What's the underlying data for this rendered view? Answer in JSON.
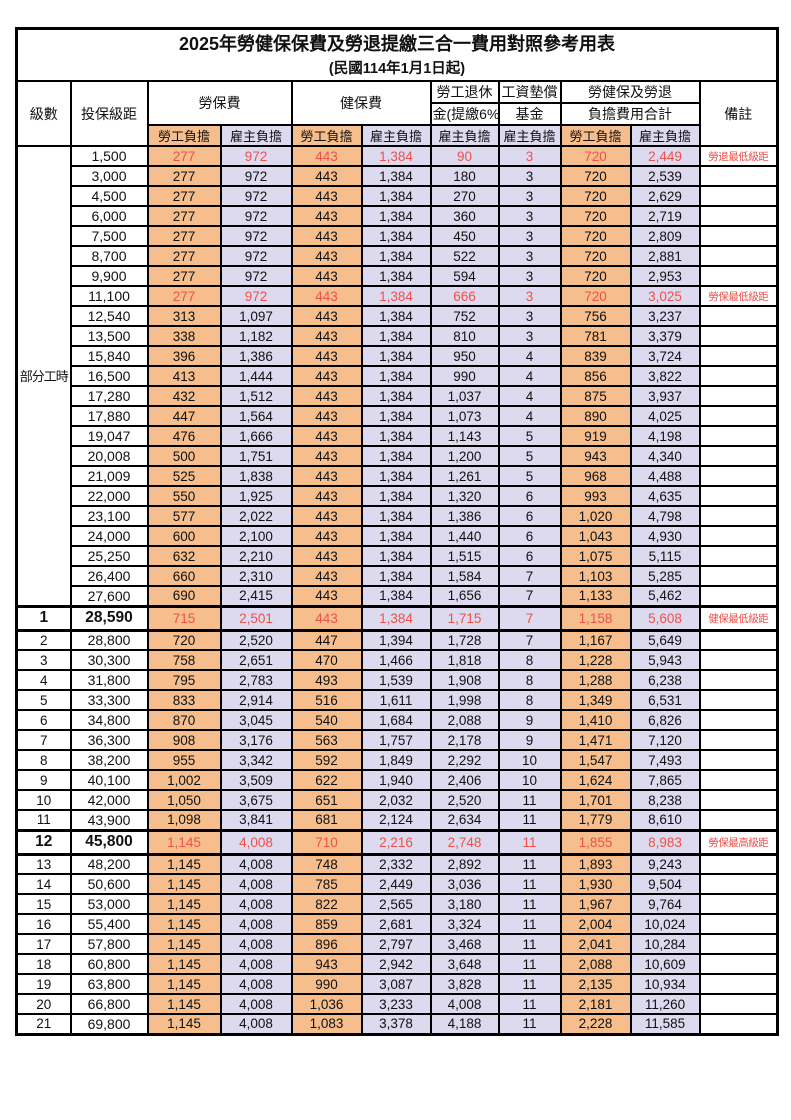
{
  "title": "2025年勞健保保費及勞退提繳三合一費用對照參考用表",
  "subtitle": "(民國114年1月1日起)",
  "header": {
    "level": "級數",
    "bracket": "投保級距",
    "labor_fee": "勞保費",
    "health_fee": "健保費",
    "pension_line1": "勞工退休",
    "pension_line2": "金(提繳6%)",
    "wage_fund_line1": "工資墊償",
    "wage_fund_line2": "基金",
    "total_line1": "勞健保及勞退",
    "total_line2": "負擔費用合計",
    "remark": "備註",
    "employee": "勞工負擔",
    "employer": "雇主負擔"
  },
  "part_time": {
    "label": "部分工時",
    "row_span": 23
  },
  "colors": {
    "employee_bg": "#F6BE8C",
    "employer_bg": "#DDD9EF",
    "red_text": "#EE5149",
    "border": "#000000"
  },
  "rows": [
    {
      "lv": "",
      "br": "1,500",
      "c": [
        "277",
        "972",
        "443",
        "1,384",
        "90",
        "3",
        "720",
        "2,449"
      ],
      "rm": "勞退最低級距",
      "red": true,
      "hl": false
    },
    {
      "lv": "",
      "br": "3,000",
      "c": [
        "277",
        "972",
        "443",
        "1,384",
        "180",
        "3",
        "720",
        "2,539"
      ],
      "rm": "",
      "red": false,
      "hl": false
    },
    {
      "lv": "",
      "br": "4,500",
      "c": [
        "277",
        "972",
        "443",
        "1,384",
        "270",
        "3",
        "720",
        "2,629"
      ],
      "rm": "",
      "red": false,
      "hl": false
    },
    {
      "lv": "",
      "br": "6,000",
      "c": [
        "277",
        "972",
        "443",
        "1,384",
        "360",
        "3",
        "720",
        "2,719"
      ],
      "rm": "",
      "red": false,
      "hl": false
    },
    {
      "lv": "",
      "br": "7,500",
      "c": [
        "277",
        "972",
        "443",
        "1,384",
        "450",
        "3",
        "720",
        "2,809"
      ],
      "rm": "",
      "red": false,
      "hl": false
    },
    {
      "lv": "",
      "br": "8,700",
      "c": [
        "277",
        "972",
        "443",
        "1,384",
        "522",
        "3",
        "720",
        "2,881"
      ],
      "rm": "",
      "red": false,
      "hl": false
    },
    {
      "lv": "",
      "br": "9,900",
      "c": [
        "277",
        "972",
        "443",
        "1,384",
        "594",
        "3",
        "720",
        "2,953"
      ],
      "rm": "",
      "red": false,
      "hl": false
    },
    {
      "lv": "",
      "br": "11,100",
      "c": [
        "277",
        "972",
        "443",
        "1,384",
        "666",
        "3",
        "720",
        "3,025"
      ],
      "rm": "勞保最低級距",
      "red": true,
      "hl": false
    },
    {
      "lv": "",
      "br": "12,540",
      "c": [
        "313",
        "1,097",
        "443",
        "1,384",
        "752",
        "3",
        "756",
        "3,237"
      ],
      "rm": "",
      "red": false,
      "hl": false
    },
    {
      "lv": "",
      "br": "13,500",
      "c": [
        "338",
        "1,182",
        "443",
        "1,384",
        "810",
        "3",
        "781",
        "3,379"
      ],
      "rm": "",
      "red": false,
      "hl": false
    },
    {
      "lv": "",
      "br": "15,840",
      "c": [
        "396",
        "1,386",
        "443",
        "1,384",
        "950",
        "4",
        "839",
        "3,724"
      ],
      "rm": "",
      "red": false,
      "hl": false
    },
    {
      "lv": "",
      "br": "16,500",
      "c": [
        "413",
        "1,444",
        "443",
        "1,384",
        "990",
        "4",
        "856",
        "3,822"
      ],
      "rm": "",
      "red": false,
      "hl": false
    },
    {
      "lv": "",
      "br": "17,280",
      "c": [
        "432",
        "1,512",
        "443",
        "1,384",
        "1,037",
        "4",
        "875",
        "3,937"
      ],
      "rm": "",
      "red": false,
      "hl": false
    },
    {
      "lv": "",
      "br": "17,880",
      "c": [
        "447",
        "1,564",
        "443",
        "1,384",
        "1,073",
        "4",
        "890",
        "4,025"
      ],
      "rm": "",
      "red": false,
      "hl": false
    },
    {
      "lv": "",
      "br": "19,047",
      "c": [
        "476",
        "1,666",
        "443",
        "1,384",
        "1,143",
        "5",
        "919",
        "4,198"
      ],
      "rm": "",
      "red": false,
      "hl": false
    },
    {
      "lv": "",
      "br": "20,008",
      "c": [
        "500",
        "1,751",
        "443",
        "1,384",
        "1,200",
        "5",
        "943",
        "4,340"
      ],
      "rm": "",
      "red": false,
      "hl": false
    },
    {
      "lv": "",
      "br": "21,009",
      "c": [
        "525",
        "1,838",
        "443",
        "1,384",
        "1,261",
        "5",
        "968",
        "4,488"
      ],
      "rm": "",
      "red": false,
      "hl": false
    },
    {
      "lv": "",
      "br": "22,000",
      "c": [
        "550",
        "1,925",
        "443",
        "1,384",
        "1,320",
        "6",
        "993",
        "4,635"
      ],
      "rm": "",
      "red": false,
      "hl": false
    },
    {
      "lv": "",
      "br": "23,100",
      "c": [
        "577",
        "2,022",
        "443",
        "1,384",
        "1,386",
        "6",
        "1,020",
        "4,798"
      ],
      "rm": "",
      "red": false,
      "hl": false
    },
    {
      "lv": "",
      "br": "24,000",
      "c": [
        "600",
        "2,100",
        "443",
        "1,384",
        "1,440",
        "6",
        "1,043",
        "4,930"
      ],
      "rm": "",
      "red": false,
      "hl": false
    },
    {
      "lv": "",
      "br": "25,250",
      "c": [
        "632",
        "2,210",
        "443",
        "1,384",
        "1,515",
        "6",
        "1,075",
        "5,115"
      ],
      "rm": "",
      "red": false,
      "hl": false
    },
    {
      "lv": "",
      "br": "26,400",
      "c": [
        "660",
        "2,310",
        "443",
        "1,384",
        "1,584",
        "7",
        "1,103",
        "5,285"
      ],
      "rm": "",
      "red": false,
      "hl": false
    },
    {
      "lv": "",
      "br": "27,600",
      "c": [
        "690",
        "2,415",
        "443",
        "1,384",
        "1,656",
        "7",
        "1,133",
        "5,462"
      ],
      "rm": "",
      "red": false,
      "hl": false
    },
    {
      "lv": "1",
      "br": "28,590",
      "c": [
        "715",
        "2,501",
        "443",
        "1,384",
        "1,715",
        "7",
        "1,158",
        "5,608"
      ],
      "rm": "健保最低級距",
      "red": true,
      "hl": true
    },
    {
      "lv": "2",
      "br": "28,800",
      "c": [
        "720",
        "2,520",
        "447",
        "1,394",
        "1,728",
        "7",
        "1,167",
        "5,649"
      ],
      "rm": "",
      "red": false,
      "hl": false
    },
    {
      "lv": "3",
      "br": "30,300",
      "c": [
        "758",
        "2,651",
        "470",
        "1,466",
        "1,818",
        "8",
        "1,228",
        "5,943"
      ],
      "rm": "",
      "red": false,
      "hl": false
    },
    {
      "lv": "4",
      "br": "31,800",
      "c": [
        "795",
        "2,783",
        "493",
        "1,539",
        "1,908",
        "8",
        "1,288",
        "6,238"
      ],
      "rm": "",
      "red": false,
      "hl": false
    },
    {
      "lv": "5",
      "br": "33,300",
      "c": [
        "833",
        "2,914",
        "516",
        "1,611",
        "1,998",
        "8",
        "1,349",
        "6,531"
      ],
      "rm": "",
      "red": false,
      "hl": false
    },
    {
      "lv": "6",
      "br": "34,800",
      "c": [
        "870",
        "3,045",
        "540",
        "1,684",
        "2,088",
        "9",
        "1,410",
        "6,826"
      ],
      "rm": "",
      "red": false,
      "hl": false
    },
    {
      "lv": "7",
      "br": "36,300",
      "c": [
        "908",
        "3,176",
        "563",
        "1,757",
        "2,178",
        "9",
        "1,471",
        "7,120"
      ],
      "rm": "",
      "red": false,
      "hl": false
    },
    {
      "lv": "8",
      "br": "38,200",
      "c": [
        "955",
        "3,342",
        "592",
        "1,849",
        "2,292",
        "10",
        "1,547",
        "7,493"
      ],
      "rm": "",
      "red": false,
      "hl": false
    },
    {
      "lv": "9",
      "br": "40,100",
      "c": [
        "1,002",
        "3,509",
        "622",
        "1,940",
        "2,406",
        "10",
        "1,624",
        "7,865"
      ],
      "rm": "",
      "red": false,
      "hl": false
    },
    {
      "lv": "10",
      "br": "42,000",
      "c": [
        "1,050",
        "3,675",
        "651",
        "2,032",
        "2,520",
        "11",
        "1,701",
        "8,238"
      ],
      "rm": "",
      "red": false,
      "hl": false
    },
    {
      "lv": "11",
      "br": "43,900",
      "c": [
        "1,098",
        "3,841",
        "681",
        "2,124",
        "2,634",
        "11",
        "1,779",
        "8,610"
      ],
      "rm": "",
      "red": false,
      "hl": false
    },
    {
      "lv": "12",
      "br": "45,800",
      "c": [
        "1,145",
        "4,008",
        "710",
        "2,216",
        "2,748",
        "11",
        "1,855",
        "8,983"
      ],
      "rm": "勞保最高級距",
      "red": true,
      "hl": true
    },
    {
      "lv": "13",
      "br": "48,200",
      "c": [
        "1,145",
        "4,008",
        "748",
        "2,332",
        "2,892",
        "11",
        "1,893",
        "9,243"
      ],
      "rm": "",
      "red": false,
      "hl": false
    },
    {
      "lv": "14",
      "br": "50,600",
      "c": [
        "1,145",
        "4,008",
        "785",
        "2,449",
        "3,036",
        "11",
        "1,930",
        "9,504"
      ],
      "rm": "",
      "red": false,
      "hl": false
    },
    {
      "lv": "15",
      "br": "53,000",
      "c": [
        "1,145",
        "4,008",
        "822",
        "2,565",
        "3,180",
        "11",
        "1,967",
        "9,764"
      ],
      "rm": "",
      "red": false,
      "hl": false
    },
    {
      "lv": "16",
      "br": "55,400",
      "c": [
        "1,145",
        "4,008",
        "859",
        "2,681",
        "3,324",
        "11",
        "2,004",
        "10,024"
      ],
      "rm": "",
      "red": false,
      "hl": false
    },
    {
      "lv": "17",
      "br": "57,800",
      "c": [
        "1,145",
        "4,008",
        "896",
        "2,797",
        "3,468",
        "11",
        "2,041",
        "10,284"
      ],
      "rm": "",
      "red": false,
      "hl": false
    },
    {
      "lv": "18",
      "br": "60,800",
      "c": [
        "1,145",
        "4,008",
        "943",
        "2,942",
        "3,648",
        "11",
        "2,088",
        "10,609"
      ],
      "rm": "",
      "red": false,
      "hl": false
    },
    {
      "lv": "19",
      "br": "63,800",
      "c": [
        "1,145",
        "4,008",
        "990",
        "3,087",
        "3,828",
        "11",
        "2,135",
        "10,934"
      ],
      "rm": "",
      "red": false,
      "hl": false
    },
    {
      "lv": "20",
      "br": "66,800",
      "c": [
        "1,145",
        "4,008",
        "1,036",
        "3,233",
        "4,008",
        "11",
        "2,181",
        "11,260"
      ],
      "rm": "",
      "red": false,
      "hl": false
    },
    {
      "lv": "21",
      "br": "69,800",
      "c": [
        "1,145",
        "4,008",
        "1,083",
        "3,378",
        "4,188",
        "11",
        "2,228",
        "11,585"
      ],
      "rm": "",
      "red": false,
      "hl": false
    }
  ]
}
